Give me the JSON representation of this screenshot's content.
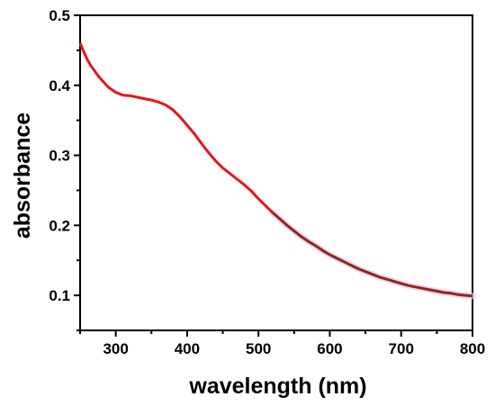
{
  "chart_data": {
    "type": "line",
    "title": "",
    "xlabel": "wavelength (nm)",
    "ylabel": "absorbance",
    "xlim": [
      250,
      800
    ],
    "ylim": [
      0.05,
      0.5
    ],
    "xticks": [
      300,
      400,
      500,
      600,
      700,
      800
    ],
    "yticks": [
      0.1,
      0.2,
      0.3,
      0.4,
      0.5
    ],
    "x_tick_labels": [
      "300",
      "400",
      "500",
      "600",
      "700",
      "800"
    ],
    "y_tick_labels": [
      "0.1",
      "0.2",
      "0.3",
      "0.4",
      "0.5"
    ],
    "grid": false,
    "legend": "none",
    "series": [
      {
        "color": "#e8141c",
        "secondary_color": "#8b2a12",
        "color_change_x": 520,
        "x": [
          250,
          255,
          260,
          265,
          270,
          275,
          280,
          290,
          300,
          310,
          320,
          325,
          330,
          340,
          350,
          360,
          370,
          380,
          390,
          400,
          410,
          420,
          430,
          440,
          450,
          460,
          470,
          480,
          490,
          500,
          510,
          520,
          530,
          540,
          550,
          560,
          570,
          580,
          590,
          600,
          610,
          620,
          630,
          640,
          650,
          660,
          670,
          680,
          690,
          700,
          710,
          720,
          730,
          740,
          750,
          760,
          770,
          780,
          790,
          800
        ],
        "y": [
          0.46,
          0.448,
          0.437,
          0.428,
          0.421,
          0.414,
          0.408,
          0.397,
          0.39,
          0.386,
          0.385,
          0.384,
          0.383,
          0.381,
          0.379,
          0.376,
          0.372,
          0.365,
          0.355,
          0.343,
          0.331,
          0.317,
          0.304,
          0.292,
          0.282,
          0.274,
          0.266,
          0.258,
          0.249,
          0.238,
          0.228,
          0.218,
          0.209,
          0.2,
          0.192,
          0.184,
          0.177,
          0.171,
          0.164,
          0.158,
          0.153,
          0.148,
          0.143,
          0.138,
          0.134,
          0.13,
          0.126,
          0.123,
          0.12,
          0.117,
          0.114,
          0.112,
          0.11,
          0.108,
          0.106,
          0.104,
          0.103,
          0.101,
          0.1,
          0.099
        ]
      }
    ]
  }
}
